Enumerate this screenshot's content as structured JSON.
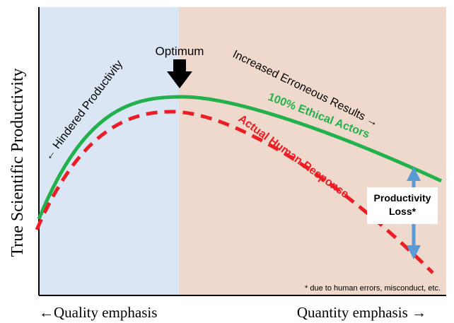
{
  "axes": {
    "y_label": "True Scientific Productivity",
    "x_label_left": "←Quality emphasis",
    "x_label_right": "Quantity emphasis →"
  },
  "annotations": {
    "optimum": "Optimum",
    "hindered": "← Hindered Productivity",
    "erroneous": "Increased Erroneous Results →",
    "ethical_curve": "100% Ethical Actors",
    "human_curve": "Actual Human Response",
    "loss_line1": "Productivity",
    "loss_line2": "Loss*",
    "footnote": "* due to human errors, misconduct, etc."
  },
  "colors": {
    "quality_region": "#dbe6f4",
    "quantity_region": "#efd9cc",
    "ethical_curve": "#22b14c",
    "human_curve": "#ee1c24",
    "loss_arrow": "#5b9bd5",
    "axis": "#000000"
  },
  "icons": {
    "optimum_marker": "arrow-down-icon",
    "loss_marker": "double-arrow-vertical-icon"
  }
}
